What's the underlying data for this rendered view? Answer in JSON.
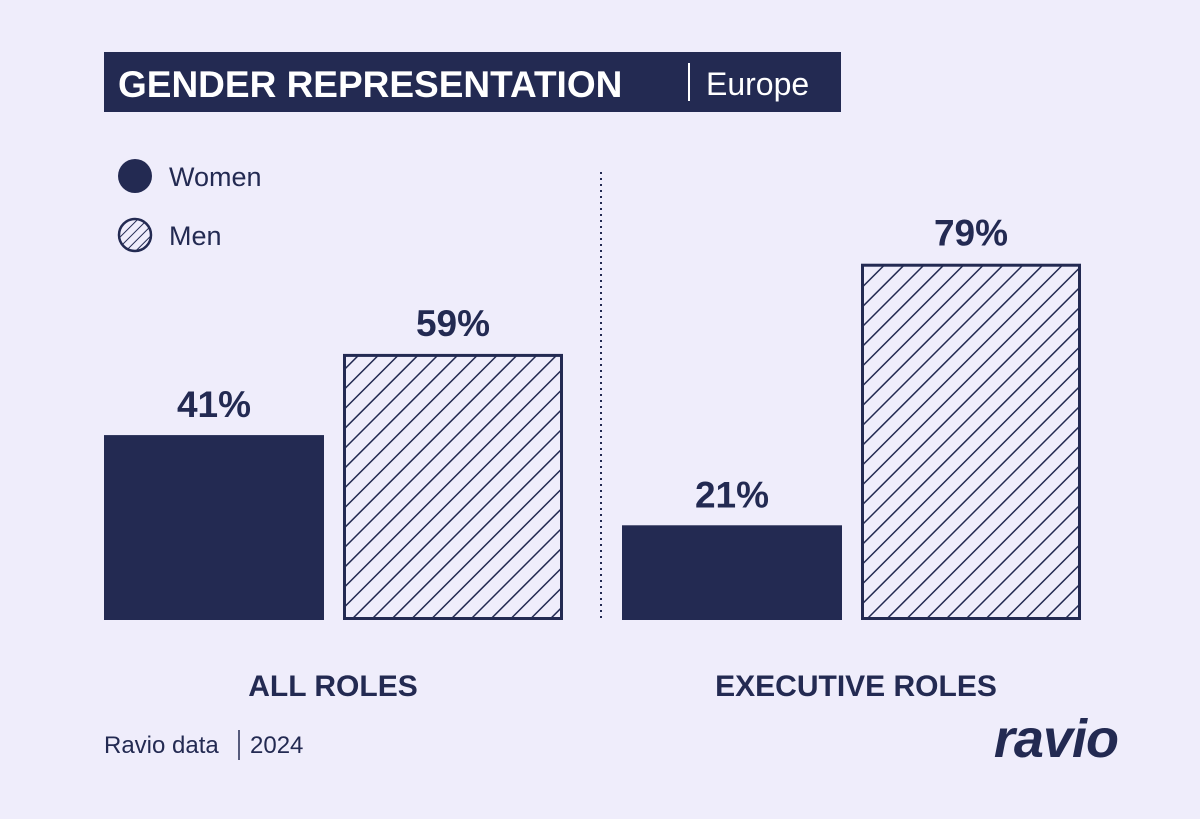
{
  "colors": {
    "background": "#efedfb",
    "navy": "#232a52",
    "white": "#ffffff"
  },
  "title": {
    "main": "GENDER REPRESENTATION",
    "region": "Europe"
  },
  "footer": {
    "source": "Ravio data",
    "year": "2024",
    "logo": "ravio"
  },
  "chart_data": {
    "type": "bar",
    "title": "GENDER REPRESENTATION | Europe",
    "categories": [
      "ALL ROLES",
      "EXECUTIVE ROLES"
    ],
    "series": [
      {
        "name": "Women",
        "values": [
          41,
          21
        ],
        "fill": "solid",
        "labels": [
          "41%",
          "21%"
        ]
      },
      {
        "name": "Men",
        "values": [
          59,
          79
        ],
        "fill": "hatched",
        "labels": [
          "59%",
          "79%"
        ]
      }
    ],
    "unit": "%",
    "ylim": [
      0,
      100
    ],
    "grid": false,
    "legend": "top-left"
  }
}
